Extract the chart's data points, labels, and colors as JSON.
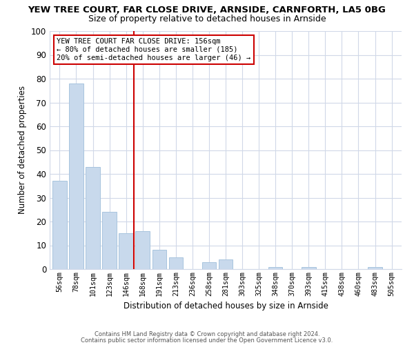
{
  "title": "YEW TREE COURT, FAR CLOSE DRIVE, ARNSIDE, CARNFORTH, LA5 0BG",
  "subtitle": "Size of property relative to detached houses in Arnside",
  "xlabel": "Distribution of detached houses by size in Arnside",
  "ylabel": "Number of detached properties",
  "categories": [
    "56sqm",
    "78sqm",
    "101sqm",
    "123sqm",
    "146sqm",
    "168sqm",
    "191sqm",
    "213sqm",
    "236sqm",
    "258sqm",
    "281sqm",
    "303sqm",
    "325sqm",
    "348sqm",
    "370sqm",
    "393sqm",
    "415sqm",
    "438sqm",
    "460sqm",
    "483sqm",
    "505sqm"
  ],
  "values": [
    37,
    78,
    43,
    24,
    15,
    16,
    8,
    5,
    0,
    3,
    4,
    0,
    0,
    1,
    0,
    1,
    0,
    0,
    0,
    1,
    0
  ],
  "bar_color": "#c8d9ec",
  "bar_edge_color": "#a8c4de",
  "reference_line_color": "#cc0000",
  "annotation_text": "YEW TREE COURT FAR CLOSE DRIVE: 156sqm\n← 80% of detached houses are smaller (185)\n20% of semi-detached houses are larger (46) →",
  "annotation_box_facecolor": "#ffffff",
  "annotation_box_edgecolor": "#cc0000",
  "ylim": [
    0,
    100
  ],
  "yticks": [
    0,
    10,
    20,
    30,
    40,
    50,
    60,
    70,
    80,
    90,
    100
  ],
  "footer1": "Contains HM Land Registry data © Crown copyright and database right 2024.",
  "footer2": "Contains public sector information licensed under the Open Government Licence v3.0.",
  "background_color": "#ffffff",
  "plot_bg_color": "#ffffff",
  "grid_color": "#d0d8e8"
}
